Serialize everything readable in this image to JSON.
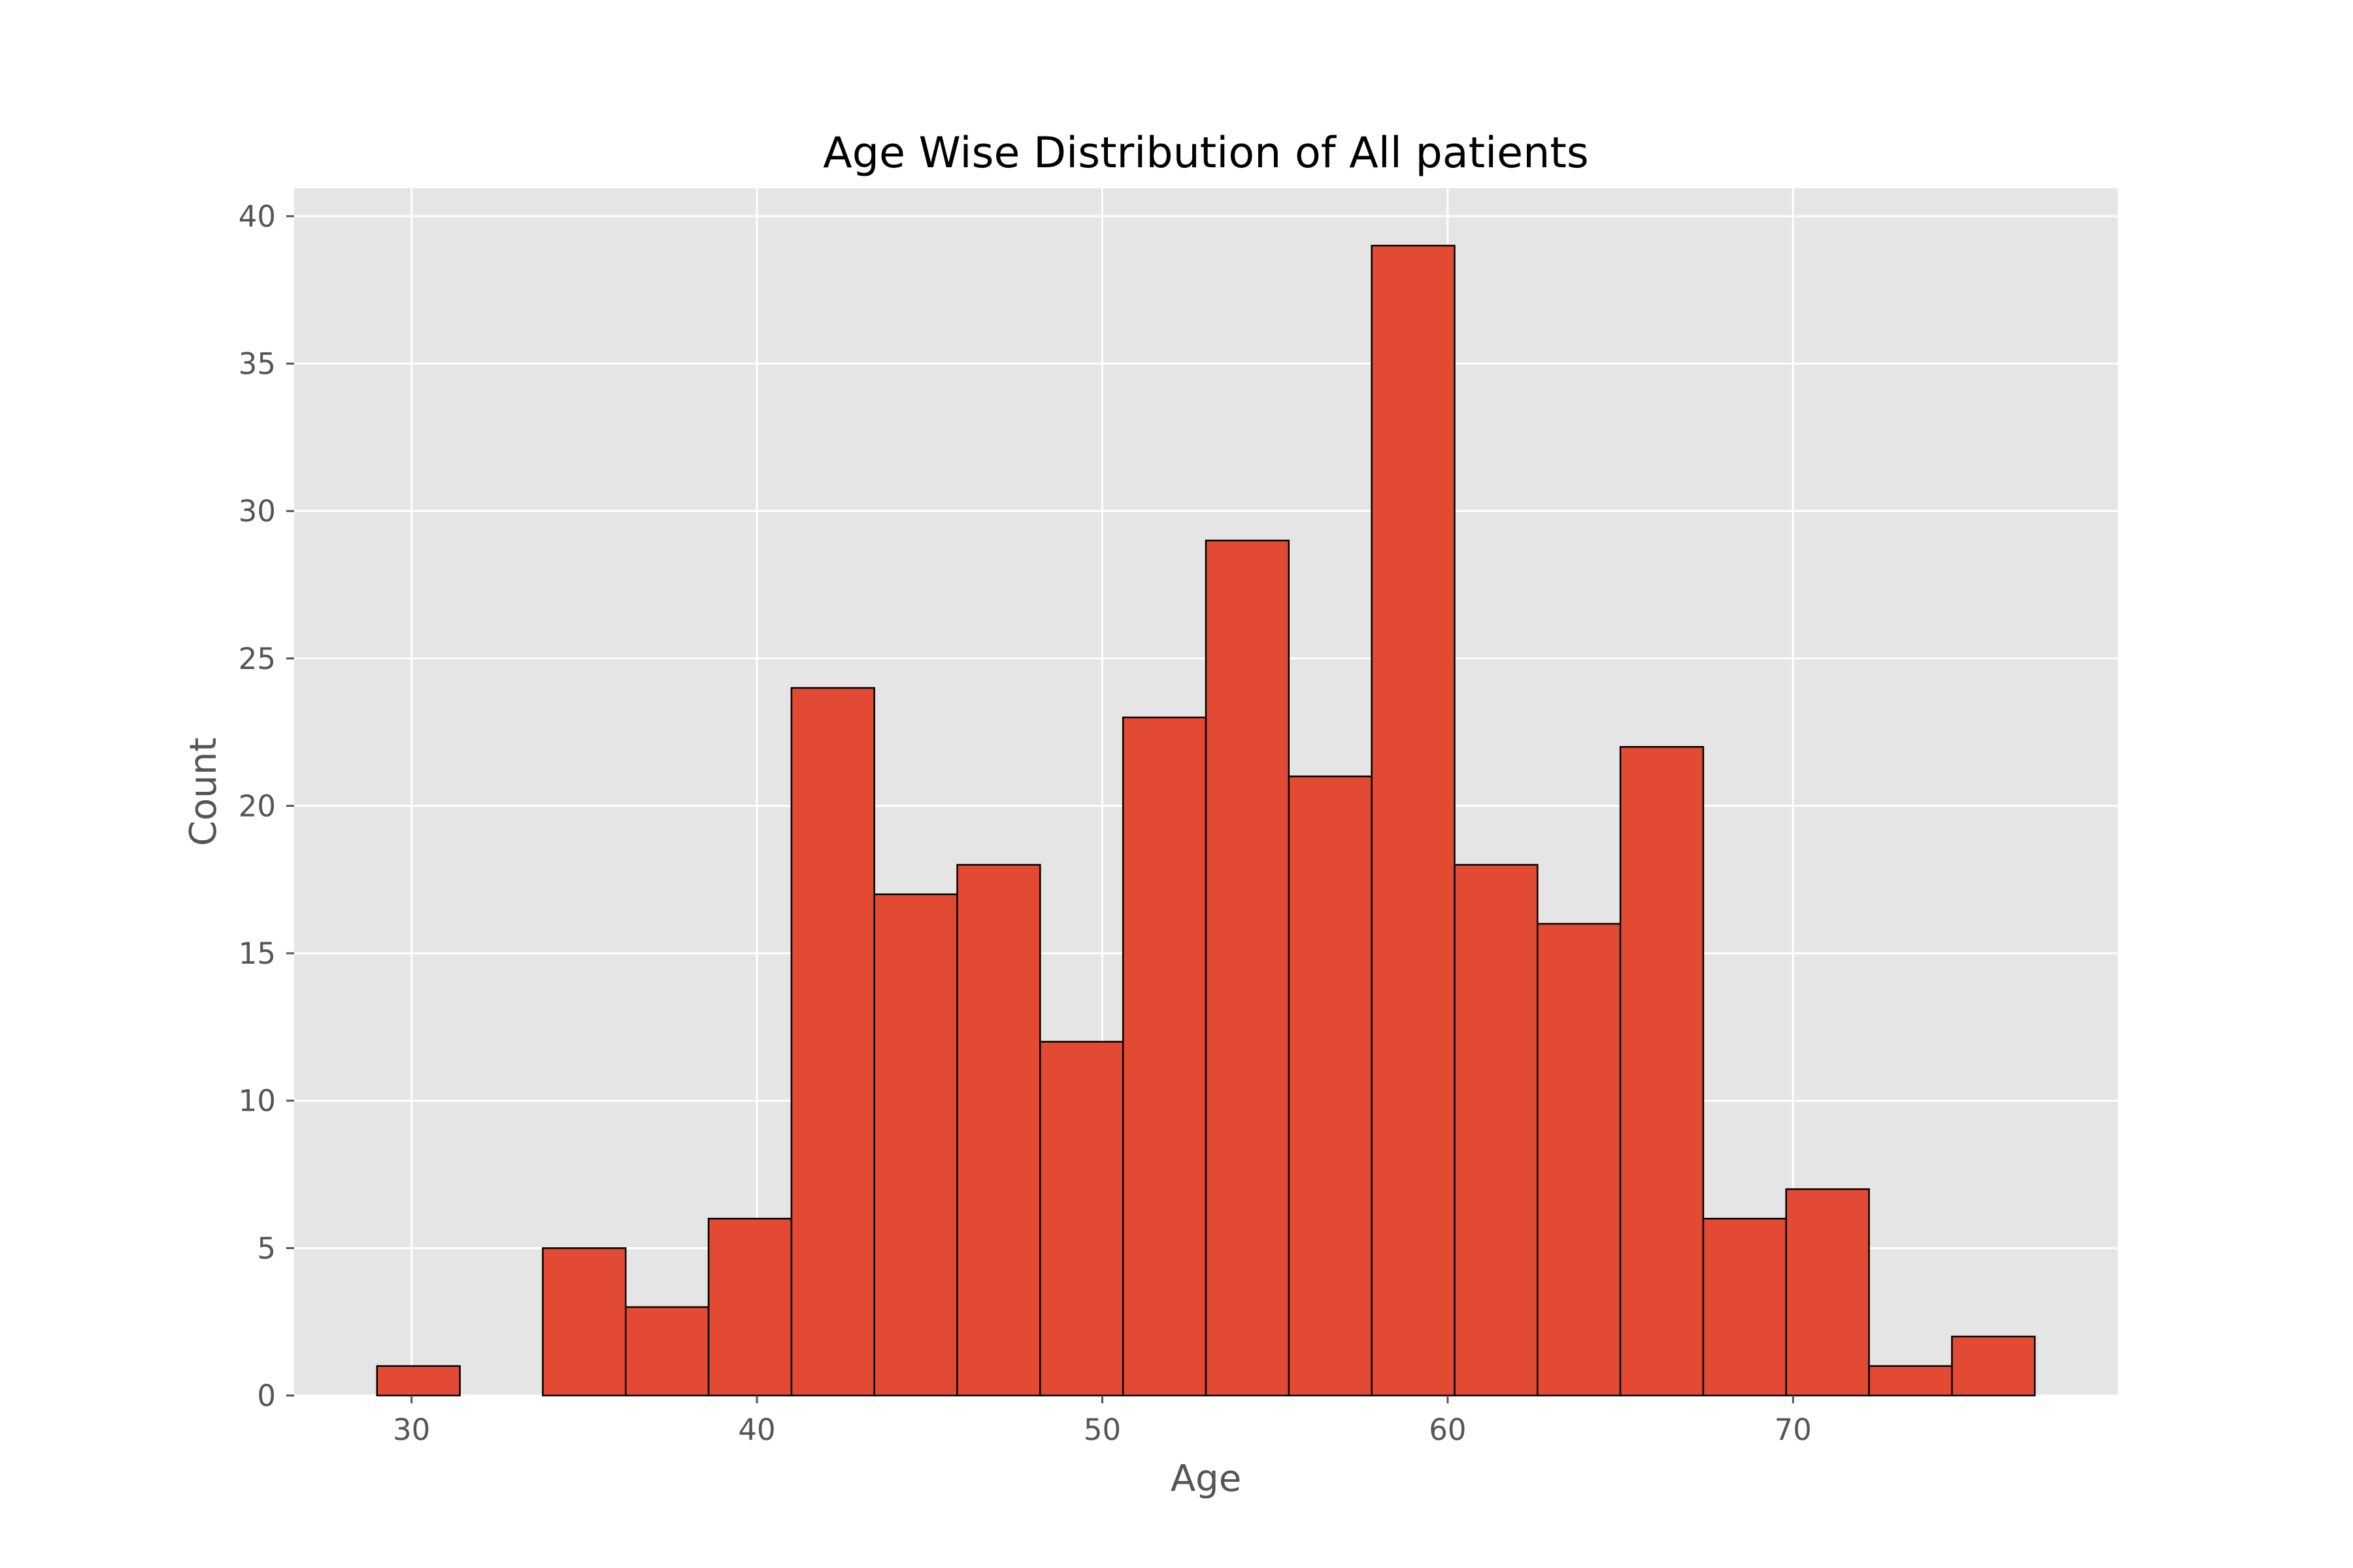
{
  "chart_data": {
    "type": "bar",
    "title": "Age Wise Distribution of All patients",
    "xlabel": "Age",
    "ylabel": "Count",
    "xlim": [
      26.6,
      79.4
    ],
    "ylim": [
      0,
      40.95
    ],
    "xticks": [
      30,
      40,
      50,
      60,
      70
    ],
    "yticks": [
      0,
      5,
      10,
      15,
      20,
      25,
      30,
      35,
      40
    ],
    "bin_edges": [
      29.0,
      31.4,
      33.8,
      36.2,
      38.6,
      41.0,
      43.4,
      45.8,
      48.2,
      50.6,
      53.0,
      55.4,
      57.8,
      60.2,
      62.6,
      65.0,
      67.4,
      69.8,
      72.2,
      74.6,
      77.0
    ],
    "counts": [
      1,
      0,
      5,
      3,
      6,
      24,
      17,
      18,
      12,
      23,
      29,
      21,
      39,
      18,
      16,
      22,
      6,
      7,
      1,
      2
    ],
    "grid": true,
    "colors": {
      "bar": "#E24A33",
      "bar_edge": "#000000",
      "axes_bg": "#E5E5E5",
      "grid": "#FFFFFF",
      "tick_text": "#555555",
      "title_text": "#000000"
    }
  }
}
